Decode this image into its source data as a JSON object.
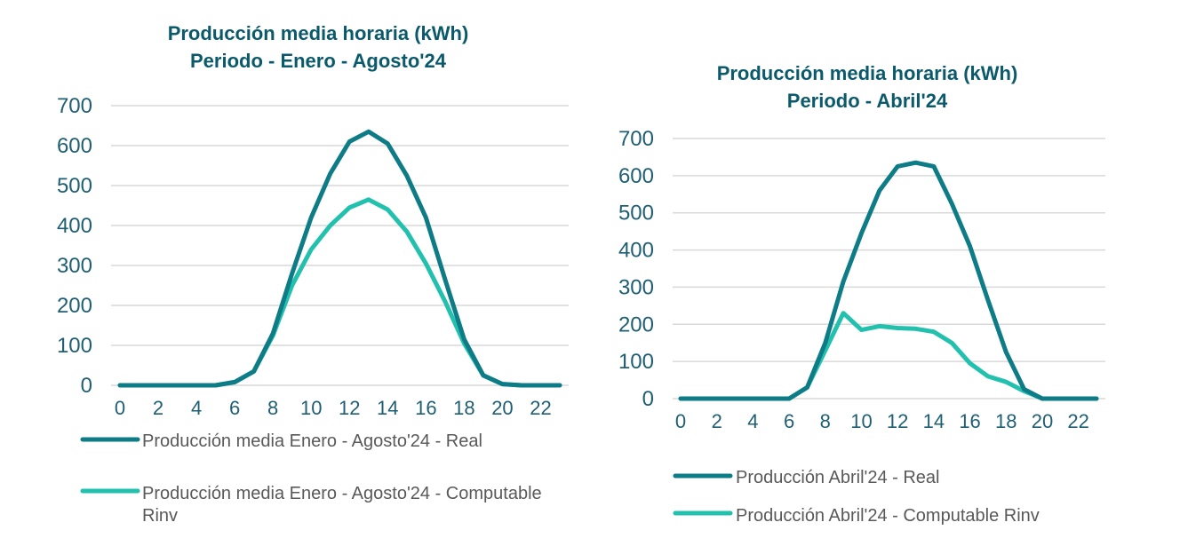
{
  "chart_data": [
    {
      "type": "line",
      "title_lines": [
        "Producción media horaria (kWh)",
        "Periodo - Enero - Agosto'24"
      ],
      "x": [
        0,
        1,
        2,
        3,
        4,
        5,
        6,
        7,
        8,
        9,
        10,
        11,
        12,
        13,
        14,
        15,
        16,
        17,
        18,
        19,
        20,
        21,
        22,
        23
      ],
      "x_tick_labels": [
        "0",
        "2",
        "4",
        "6",
        "8",
        "10",
        "12",
        "14",
        "16",
        "18",
        "20",
        "22"
      ],
      "ylim": [
        0,
        700
      ],
      "y_tick_labels": [
        "0",
        "100",
        "200",
        "300",
        "400",
        "500",
        "600",
        "700"
      ],
      "grid": true,
      "legend_position": "bottom",
      "series": [
        {
          "name": "Producción media Enero - Agosto'24 - Real",
          "color": "#0e7c86",
          "values": [
            0,
            0,
            0,
            0,
            0,
            0,
            8,
            35,
            130,
            280,
            420,
            530,
            610,
            635,
            605,
            525,
            420,
            265,
            115,
            25,
            3,
            0,
            0,
            0
          ]
        },
        {
          "name_lines": [
            "Producción media Enero - Agosto'24 - Computable",
            "Rinv"
          ],
          "name": "Producción media Enero - Agosto'24 - Computable Rinv",
          "color": "#22c1ae",
          "values": [
            0,
            0,
            0,
            0,
            0,
            0,
            8,
            35,
            125,
            250,
            340,
            400,
            445,
            465,
            440,
            385,
            305,
            210,
            105,
            25,
            3,
            0,
            0,
            0
          ]
        }
      ]
    },
    {
      "type": "line",
      "title_lines": [
        "Producción media horaria (kWh)",
        "Periodo - Abril'24"
      ],
      "x": [
        0,
        1,
        2,
        3,
        4,
        5,
        6,
        7,
        8,
        9,
        10,
        11,
        12,
        13,
        14,
        15,
        16,
        17,
        18,
        19,
        20,
        21,
        22,
        23
      ],
      "x_tick_labels": [
        "0",
        "2",
        "4",
        "6",
        "8",
        "10",
        "12",
        "14",
        "16",
        "18",
        "20",
        "22"
      ],
      "ylim": [
        0,
        700
      ],
      "y_tick_labels": [
        "0",
        "100",
        "200",
        "300",
        "400",
        "500",
        "600",
        "700"
      ],
      "grid": true,
      "legend_position": "bottom",
      "series": [
        {
          "name": "Producción Abril'24 - Real",
          "color": "#0e7c86",
          "values": [
            0,
            0,
            0,
            0,
            0,
            0,
            0,
            30,
            150,
            315,
            445,
            560,
            625,
            635,
            625,
            525,
            410,
            265,
            125,
            25,
            0,
            0,
            0,
            0
          ]
        },
        {
          "name": "Producción Abril'24 - Computable Rinv",
          "color": "#22c1ae",
          "values": [
            0,
            0,
            0,
            0,
            0,
            0,
            0,
            30,
            130,
            230,
            185,
            195,
            190,
            188,
            180,
            150,
            95,
            60,
            45,
            20,
            0,
            0,
            0,
            0
          ]
        }
      ]
    }
  ]
}
